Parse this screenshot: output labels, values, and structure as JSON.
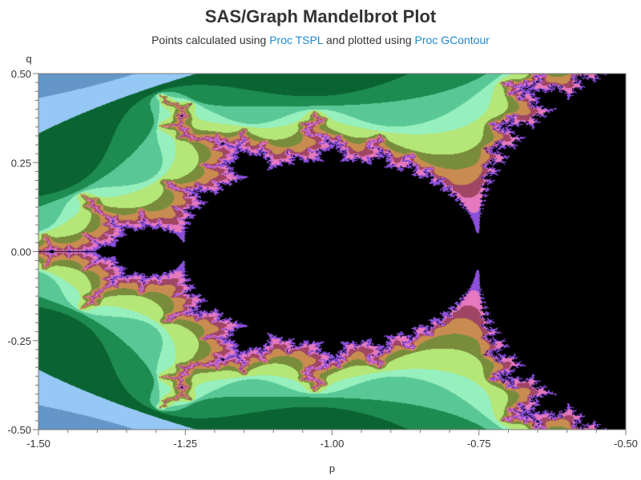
{
  "chart_data": {
    "type": "heatmap",
    "title": "SAS/Graph Mandelbrot Plot",
    "subtitle": {
      "parts": [
        {
          "text": "Points calculated using ",
          "link": false
        },
        {
          "text": "Proc TSPL",
          "link": true
        },
        {
          "text": " and plotted using ",
          "link": false
        },
        {
          "text": "Proc GContour",
          "link": true
        }
      ]
    },
    "xlabel": "p",
    "ylabel": "q",
    "xlim": [
      -1.5,
      -0.5
    ],
    "ylim": [
      -0.5,
      0.5
    ],
    "xticks": [
      {
        "value": -1.5,
        "label": "-1.50"
      },
      {
        "value": -1.25,
        "label": "-1.25"
      },
      {
        "value": -1.0,
        "label": "-1.00"
      },
      {
        "value": -0.75,
        "label": "-0.75"
      },
      {
        "value": -0.5,
        "label": "-0.50"
      }
    ],
    "yticks": [
      {
        "value": 0.5,
        "label": "0.50"
      },
      {
        "value": 0.25,
        "label": "0.25"
      },
      {
        "value": 0.0,
        "label": "0.00"
      },
      {
        "value": -0.25,
        "label": "-0.25"
      },
      {
        "value": -0.5,
        "label": "-0.50"
      }
    ],
    "grid": false,
    "set_color": "#000000",
    "max_iterations": 60,
    "iteration_palette": [
      "#0a2a55",
      "#2d5f92",
      "#6496c8",
      "#96c8f5",
      "#0a6432",
      "#1e8c50",
      "#5ac896",
      "#96f0be",
      "#b4e678",
      "#788c3c",
      "#c88c50",
      "#a04664",
      "#e678be",
      "#8c50dc"
    ]
  }
}
